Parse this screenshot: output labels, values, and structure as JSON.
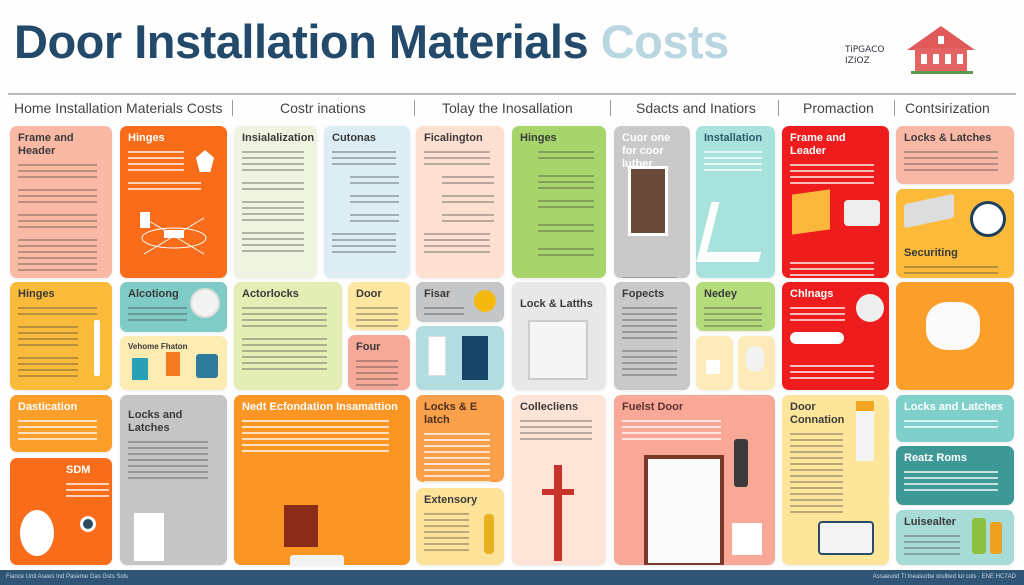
{
  "header": {
    "title": "Door Installation Materials",
    "title_accent": "Costs",
    "subtitle_line1": "TiPGACO",
    "subtitle_line2": "IZIOZ",
    "logo_icon": "house-icon"
  },
  "nav": [
    "Home Installation Materials Costs",
    "Costr inations",
    "Tolay the Inosallation",
    "Sdacts and Inatiors",
    "Promaction",
    "Contsirization"
  ],
  "cards": {
    "r1": [
      "Frame and Header",
      "Hinges",
      "Insialalization",
      "Cutonas",
      "Ficalington",
      "Hinges",
      "Cuor one for coor lutber",
      "Installation",
      "Frame and Leader",
      "Locks & Latches",
      "Securiting"
    ],
    "r2": [
      "Hinges",
      "Alcotiong",
      "Vehome Fhaton",
      "Actorlocks",
      "Door",
      "Four",
      "Fisar",
      "Lock & Latths",
      "Fopects",
      "Nedey",
      "Chlnags"
    ],
    "r3": [
      "Dastication",
      "SDM",
      "Locks and Latches",
      "Nedt Ecfondation Insamattion",
      "Locks & E latch",
      "Extensory",
      "Collecliens",
      "Fuelst Door",
      "Door Connation",
      "Locks and Latches",
      "Reatz Roms",
      "Luisealter"
    ]
  },
  "footer": {
    "left": "Fiance Unit Asees Ind Paseme Gas Gsts Sols",
    "right": "Assaeund Tl Ineasurbe orulbed lut cols · ENE HC7AD"
  },
  "colors": {
    "title": "#234a6b",
    "accent": "#b9d6e1",
    "footer": "#2f5676",
    "orange": "#f96d1a",
    "red": "#ee1c1c"
  }
}
